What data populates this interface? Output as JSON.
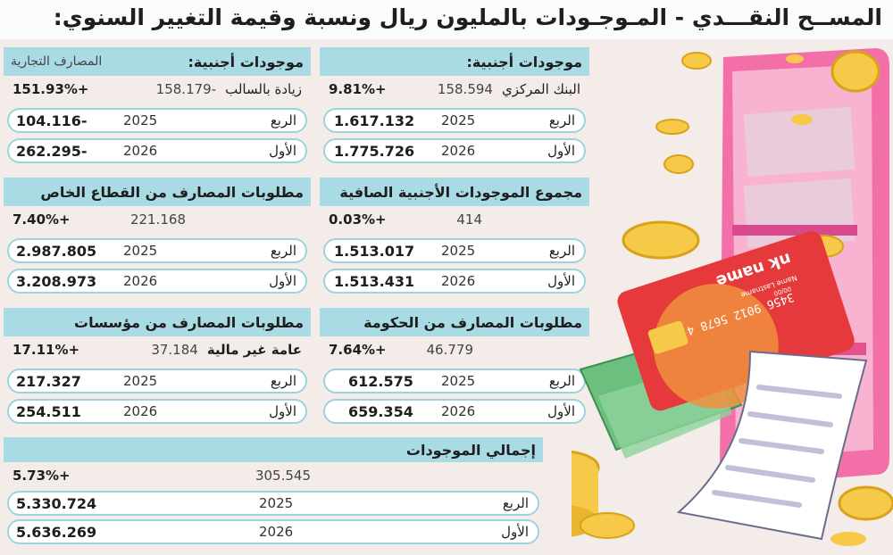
{
  "title": "المســح النقـــدي - المـوجـودات بالمليون ريال ونسبة وقيمة التغيير السنوي:",
  "panels": {
    "cb_foreign": {
      "title": "موجودات أجنبية:",
      "row0_label": "البنك المركزي",
      "row0_mid": "158.594",
      "row0_change": "+9.81%",
      "rows": [
        {
          "label": "الربع",
          "year": "2025",
          "value": "1.617.132"
        },
        {
          "label": "الأول",
          "year": "2026",
          "value": "1.775.726"
        }
      ]
    },
    "comm_foreign": {
      "title": "موجودات أجنبية:",
      "subtitle": "المصارف التجارية",
      "row0_label": "زيادة بالسالب",
      "row0_mid": "-158.179",
      "row0_change": "+151.93%",
      "rows": [
        {
          "label": "الربع",
          "year": "2025",
          "value": "-104.116"
        },
        {
          "label": "الأول",
          "year": "2026",
          "value": "-262.295"
        }
      ]
    },
    "net_foreign": {
      "title": "مجموع الموجودات الأجنبية الصافية",
      "row0_label": "",
      "row0_mid": "414",
      "row0_change": "+0.03%",
      "rows": [
        {
          "label": "الربع",
          "year": "2025",
          "value": "1.513.017"
        },
        {
          "label": "الأول",
          "year": "2026",
          "value": "1.513.431"
        }
      ]
    },
    "private_claims": {
      "title": "مطلوبات المصارف من القطاع الخاص",
      "row0_label": "",
      "row0_mid": "221.168",
      "row0_change": "+7.40%",
      "rows": [
        {
          "label": "الربع",
          "year": "2025",
          "value": "2.987.805"
        },
        {
          "label": "الأول",
          "year": "2026",
          "value": "3.208.973"
        }
      ]
    },
    "gov_claims": {
      "title": "مطلوبات المصارف من الحكومة",
      "row0_label": "",
      "row0_mid": "46.779",
      "row0_change": "+7.64%",
      "rows": [
        {
          "label": "الربع",
          "year": "2025",
          "value": "612.575"
        },
        {
          "label": "الأول",
          "year": "2026",
          "value": "659.354"
        }
      ]
    },
    "inst_claims": {
      "title": "مطلوبات المصارف من مؤسسات",
      "row0_label": "عامة غير مالية",
      "row0_mid": "37.184",
      "row0_change": "+17.11%",
      "rows": [
        {
          "label": "الربع",
          "year": "2025",
          "value": "217.327"
        },
        {
          "label": "الأول",
          "year": "2026",
          "value": "254.511"
        }
      ]
    },
    "total": {
      "title": "إجمالي الموجودات",
      "row0_mid": "305.545",
      "row0_change": "+5.73%",
      "rows": [
        {
          "label": "الربع",
          "year": "2025",
          "value": "5.330.724"
        },
        {
          "label": "الأول",
          "year": "2026",
          "value": "5.636.269"
        }
      ]
    }
  },
  "illustration": {
    "card_text": "nk name",
    "card_number": "3456 9012 5678 4",
    "card_holder": "Name Lastname",
    "card_expiry": "00/00"
  },
  "colors": {
    "header_bg": "#a9dbe5",
    "pill_border": "#9dd3df",
    "page_bg": "#f3ece8",
    "phone_pink": "#f26fa8",
    "card_red": "#e5393b",
    "coin_yellow": "#f7c948",
    "money_green": "#6cbf7e"
  }
}
